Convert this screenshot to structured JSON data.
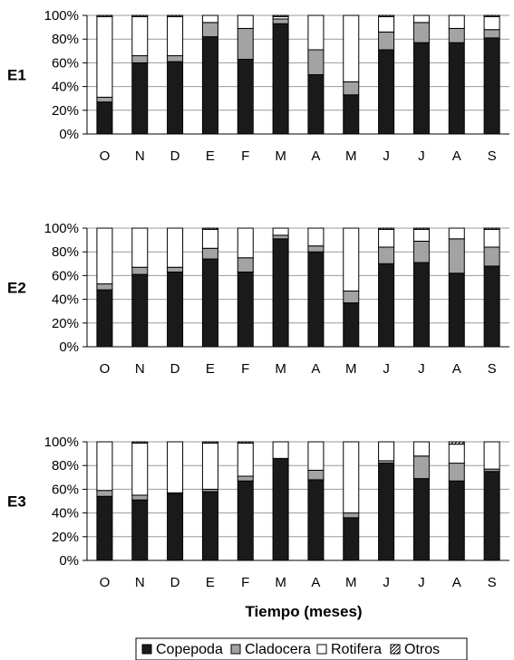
{
  "chart_data": {
    "type": "bar",
    "stacked": "percent",
    "xlabel": "Tiempo (meses)",
    "categories": [
      "O",
      "N",
      "D",
      "E",
      "F",
      "M",
      "A",
      "M",
      "J",
      "J",
      "A",
      "S"
    ],
    "yticks": [
      "0%",
      "20%",
      "40%",
      "60%",
      "80%",
      "100%"
    ],
    "ylim": [
      0,
      100
    ],
    "grid": true,
    "legend": {
      "placement": "bottom",
      "entries": [
        "Copepoda",
        "Cladocera",
        "Rotifera",
        "Otros"
      ]
    },
    "colors": {
      "Copepoda": "#1a1a1a",
      "Cladocera": "#a3a3a3",
      "Rotifera": "#ffffff",
      "Otros": "#ffffff"
    },
    "panels": [
      {
        "label": "E1",
        "series": [
          {
            "name": "Copepoda",
            "values": [
              27,
              60,
              61,
              82,
              63,
              93,
              50,
              33,
              71,
              77,
              77,
              81
            ]
          },
          {
            "name": "Cladocera",
            "values": [
              4,
              6,
              5,
              12,
              26,
              4,
              21,
              11,
              15,
              17,
              12,
              7
            ]
          },
          {
            "name": "Rotifera",
            "values": [
              68,
              33,
              33,
              6,
              11,
              2,
              29,
              56,
              13,
              6,
              11,
              11
            ]
          },
          {
            "name": "Otros",
            "values": [
              1,
              1,
              1,
              0,
              0,
              1,
              0,
              0,
              1,
              0,
              0,
              1
            ]
          }
        ]
      },
      {
        "label": "E2",
        "series": [
          {
            "name": "Copepoda",
            "values": [
              48,
              61,
              63,
              74,
              63,
              91,
              80,
              37,
              70,
              71,
              62,
              68
            ]
          },
          {
            "name": "Cladocera",
            "values": [
              5,
              6,
              4,
              9,
              12,
              3,
              5,
              10,
              14,
              18,
              29,
              16
            ]
          },
          {
            "name": "Rotifera",
            "values": [
              47,
              33,
              33,
              16,
              25,
              6,
              15,
              53,
              15,
              10,
              9,
              15
            ]
          },
          {
            "name": "Otros",
            "values": [
              0,
              0,
              0,
              1,
              0,
              0,
              0,
              0,
              1,
              1,
              0,
              1
            ]
          }
        ]
      },
      {
        "label": "E3",
        "series": [
          {
            "name": "Copepoda",
            "values": [
              54,
              51,
              56,
              58,
              67,
              86,
              68,
              36,
              82,
              69,
              67,
              75
            ]
          },
          {
            "name": "Cladocera",
            "values": [
              5,
              4,
              1,
              2,
              4,
              0,
              8,
              4,
              2,
              19,
              15,
              2
            ]
          },
          {
            "name": "Rotifera",
            "values": [
              41,
              44,
              43,
              39,
              28,
              14,
              24,
              60,
              16,
              12,
              16,
              23
            ]
          },
          {
            "name": "Otros",
            "values": [
              0,
              1,
              0,
              1,
              1,
              0,
              0,
              0,
              0,
              0,
              2,
              0
            ]
          }
        ]
      }
    ]
  }
}
